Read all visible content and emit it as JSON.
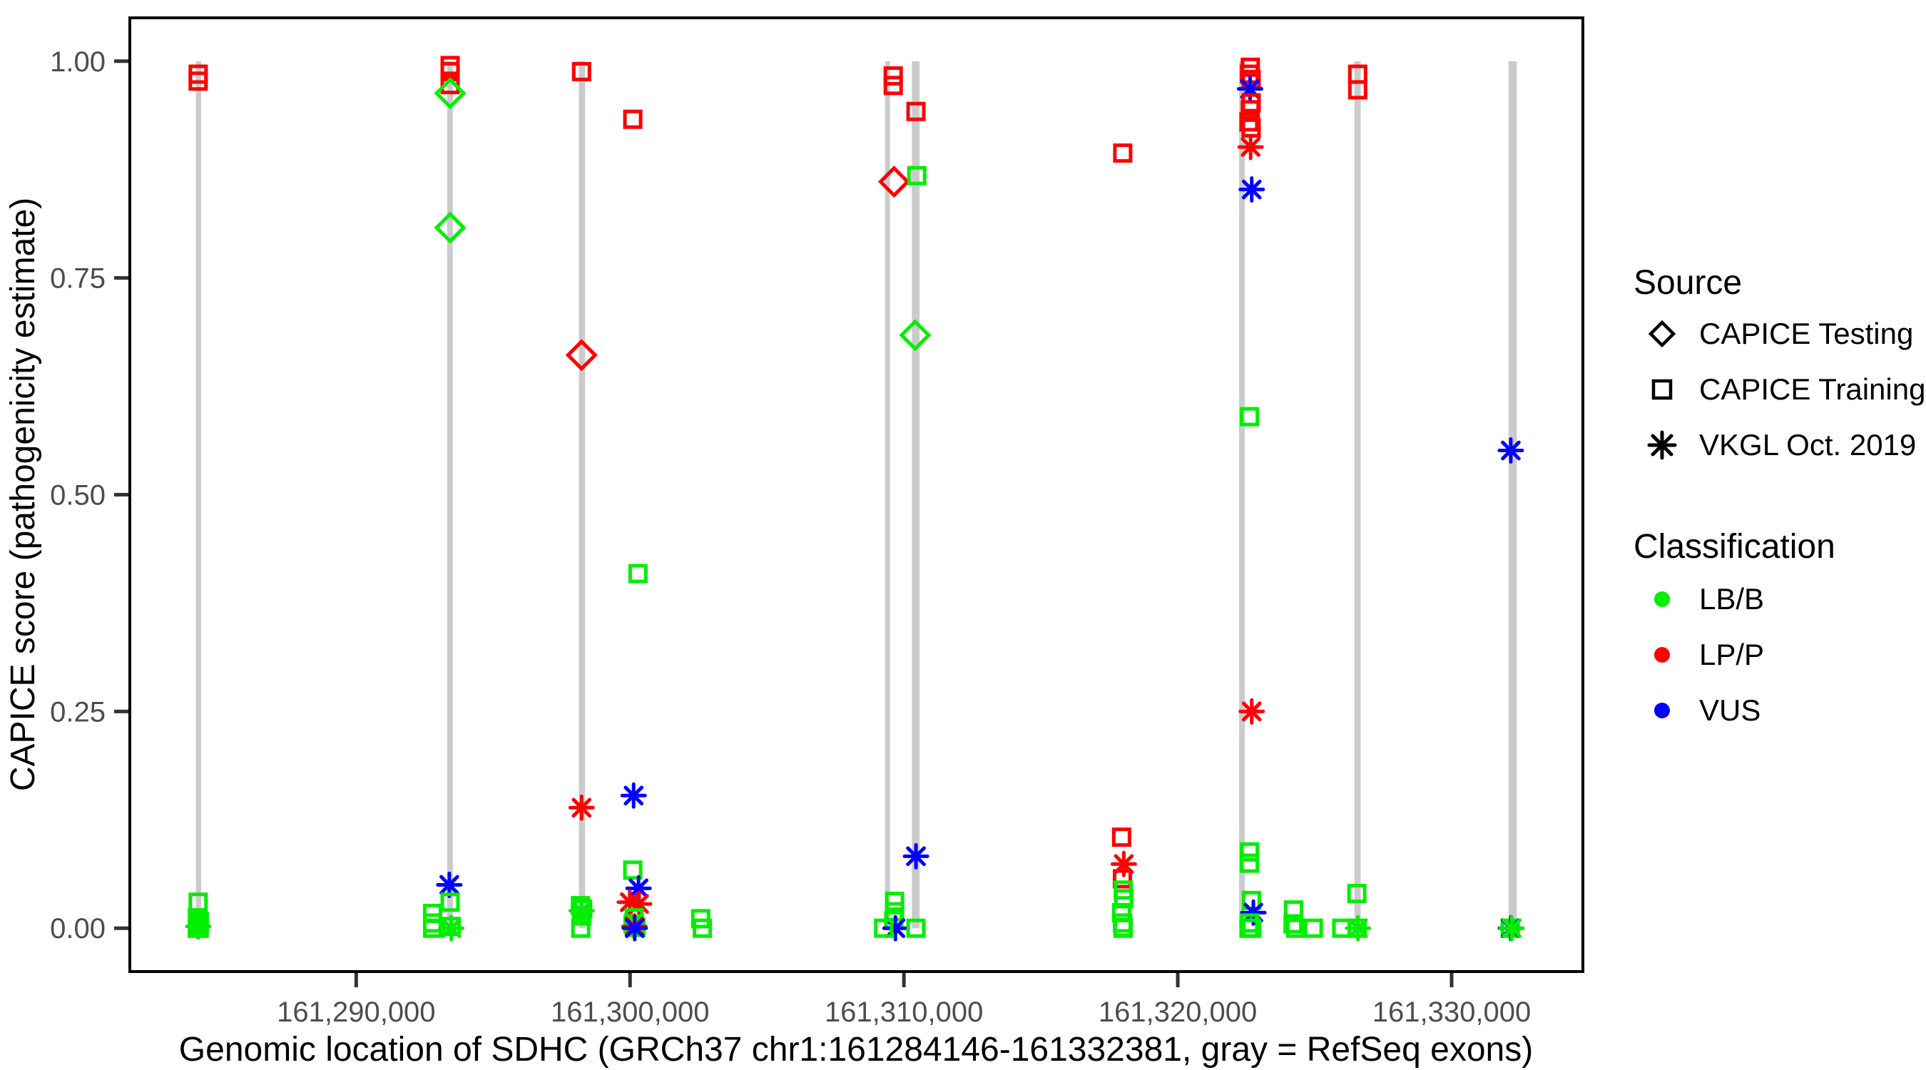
{
  "chart_data": {
    "type": "scatter",
    "title": "",
    "xlabel": "Genomic location of SDHC (GRCh37 chr1:161284146-161332381, gray = RefSeq exons)",
    "ylabel": "CAPICE score (pathogenicity estimate)",
    "xlim": [
      161281734,
      161334793
    ],
    "ylim": [
      -0.05,
      1.05
    ],
    "grid": "off",
    "x_ticks": [
      {
        "value": 161290000,
        "label": "161,290,000"
      },
      {
        "value": 161300000,
        "label": "161,300,000"
      },
      {
        "value": 161310000,
        "label": "161,310,000"
      },
      {
        "value": 161320000,
        "label": "161,320,000"
      },
      {
        "value": 161330000,
        "label": "161,330,000"
      }
    ],
    "y_ticks": [
      {
        "value": 0.0,
        "label": "0.00"
      },
      {
        "value": 0.25,
        "label": "0.25"
      },
      {
        "value": 0.5,
        "label": "0.50"
      },
      {
        "value": 0.75,
        "label": "0.75"
      },
      {
        "value": 1.0,
        "label": "1.00"
      }
    ],
    "exon_color": "#cbcbcb",
    "exons": [
      {
        "start": 161284146,
        "end": 161284340
      },
      {
        "start": 161293320,
        "end": 161293530
      },
      {
        "start": 161298130,
        "end": 161298360
      },
      {
        "start": 161309310,
        "end": 161309470
      },
      {
        "start": 161310290,
        "end": 161310570
      },
      {
        "start": 161322240,
        "end": 161322450
      },
      {
        "start": 161326450,
        "end": 161326680
      },
      {
        "start": 161332080,
        "end": 161332380
      }
    ],
    "legend": {
      "source_title": "Source",
      "sources": [
        {
          "id": "testing",
          "label": "CAPICE Testing",
          "marker": "diamond"
        },
        {
          "id": "training",
          "label": "CAPICE Training",
          "marker": "square"
        },
        {
          "id": "vkgl",
          "label": "VKGL Oct. 2019",
          "marker": "asterisk"
        }
      ],
      "classification_title": "Classification",
      "classes": [
        {
          "id": "LB/B",
          "label": "LB/B",
          "color": "#00ee00"
        },
        {
          "id": "LP/P",
          "label": "LP/P",
          "color": "#ff0000"
        },
        {
          "id": "VUS",
          "label": "VUS",
          "color": "#0000ff"
        }
      ],
      "position": "right"
    },
    "points": [
      {
        "pos": 161284230,
        "score": 0.985,
        "source": "training",
        "cls": "LP/P"
      },
      {
        "pos": 161284230,
        "score": 0.977,
        "source": "training",
        "cls": "LP/P"
      },
      {
        "pos": 161284230,
        "score": 0.03,
        "source": "training",
        "cls": "LB/B"
      },
      {
        "pos": 161284200,
        "score": 0.012,
        "source": "training",
        "cls": "LB/B"
      },
      {
        "pos": 161284270,
        "score": 0.008,
        "source": "training",
        "cls": "LB/B"
      },
      {
        "pos": 161284230,
        "score": 0.004,
        "source": "training",
        "cls": "LB/B"
      },
      {
        "pos": 161284230,
        "score": 0.002,
        "source": "vkgl",
        "cls": "LB/B"
      },
      {
        "pos": 161284200,
        "score": 0.0,
        "source": "training",
        "cls": "LB/B"
      },
      {
        "pos": 161284270,
        "score": 0.0,
        "source": "training",
        "cls": "LB/B"
      },
      {
        "pos": 161292790,
        "score": 0.017,
        "source": "training",
        "cls": "LB/B"
      },
      {
        "pos": 161292790,
        "score": 0.006,
        "source": "training",
        "cls": "LB/B"
      },
      {
        "pos": 161292790,
        "score": 0.0,
        "source": "training",
        "cls": "LB/B"
      },
      {
        "pos": 161293430,
        "score": 0.995,
        "source": "training",
        "cls": "LP/P"
      },
      {
        "pos": 161293430,
        "score": 0.988,
        "source": "training",
        "cls": "LP/P"
      },
      {
        "pos": 161293430,
        "score": 0.973,
        "source": "training",
        "cls": "LP/P"
      },
      {
        "pos": 161293430,
        "score": 0.963,
        "source": "testing",
        "cls": "LB/B"
      },
      {
        "pos": 161293430,
        "score": 0.808,
        "source": "testing",
        "cls": "LB/B"
      },
      {
        "pos": 161293400,
        "score": 0.05,
        "source": "vkgl",
        "cls": "VUS"
      },
      {
        "pos": 161293430,
        "score": 0.03,
        "source": "training",
        "cls": "LB/B"
      },
      {
        "pos": 161293470,
        "score": 0.002,
        "source": "training",
        "cls": "LB/B"
      },
      {
        "pos": 161293470,
        "score": 0.0,
        "source": "vkgl",
        "cls": "LB/B"
      },
      {
        "pos": 161298230,
        "score": 0.988,
        "source": "training",
        "cls": "LP/P"
      },
      {
        "pos": 161298230,
        "score": 0.661,
        "source": "testing",
        "cls": "LP/P"
      },
      {
        "pos": 161298230,
        "score": 0.139,
        "source": "vkgl",
        "cls": "LP/P"
      },
      {
        "pos": 161298190,
        "score": 0.026,
        "source": "training",
        "cls": "LB/B"
      },
      {
        "pos": 161298270,
        "score": 0.022,
        "source": "training",
        "cls": "LB/B"
      },
      {
        "pos": 161298230,
        "score": 0.02,
        "source": "vkgl",
        "cls": "LB/B"
      },
      {
        "pos": 161298230,
        "score": 0.014,
        "source": "training",
        "cls": "LB/B"
      },
      {
        "pos": 161298200,
        "score": 0.0,
        "source": "training",
        "cls": "LB/B"
      },
      {
        "pos": 161300100,
        "score": 0.933,
        "source": "training",
        "cls": "LP/P"
      },
      {
        "pos": 161300290,
        "score": 0.409,
        "source": "training",
        "cls": "LB/B"
      },
      {
        "pos": 161300130,
        "score": 0.153,
        "source": "vkgl",
        "cls": "VUS"
      },
      {
        "pos": 161300100,
        "score": 0.067,
        "source": "training",
        "cls": "LB/B"
      },
      {
        "pos": 161300310,
        "score": 0.046,
        "source": "vkgl",
        "cls": "VUS"
      },
      {
        "pos": 161299990,
        "score": 0.03,
        "source": "vkgl",
        "cls": "LP/P"
      },
      {
        "pos": 161300330,
        "score": 0.028,
        "source": "vkgl",
        "cls": "LP/P"
      },
      {
        "pos": 161300150,
        "score": 0.012,
        "source": "training",
        "cls": "LB/B"
      },
      {
        "pos": 161300110,
        "score": 0.005,
        "source": "training",
        "cls": "LB/B"
      },
      {
        "pos": 161300220,
        "score": 0.001,
        "source": "training",
        "cls": "LB/B"
      },
      {
        "pos": 161300160,
        "score": 0.002,
        "source": "vkgl",
        "cls": "LP/P"
      },
      {
        "pos": 161300170,
        "score": 0.0,
        "source": "vkgl",
        "cls": "VUS"
      },
      {
        "pos": 161302580,
        "score": 0.011,
        "source": "training",
        "cls": "LB/B"
      },
      {
        "pos": 161302640,
        "score": 0.0,
        "source": "training",
        "cls": "LB/B"
      },
      {
        "pos": 161309610,
        "score": 0.983,
        "source": "training",
        "cls": "LP/P"
      },
      {
        "pos": 161309610,
        "score": 0.972,
        "source": "training",
        "cls": "LP/P"
      },
      {
        "pos": 161309640,
        "score": 0.861,
        "source": "testing",
        "cls": "LP/P"
      },
      {
        "pos": 161309660,
        "score": 0.031,
        "source": "training",
        "cls": "LB/B"
      },
      {
        "pos": 161309660,
        "score": 0.019,
        "source": "training",
        "cls": "LB/B"
      },
      {
        "pos": 161309630,
        "score": 0.009,
        "source": "training",
        "cls": "LB/B"
      },
      {
        "pos": 161309690,
        "score": 0.0,
        "source": "vkgl",
        "cls": "VUS"
      },
      {
        "pos": 161309260,
        "score": 0.0,
        "source": "training",
        "cls": "LB/B"
      },
      {
        "pos": 161310440,
        "score": 0.942,
        "source": "training",
        "cls": "LP/P"
      },
      {
        "pos": 161310470,
        "score": 0.868,
        "source": "training",
        "cls": "LB/B"
      },
      {
        "pos": 161310410,
        "score": 0.684,
        "source": "testing",
        "cls": "LB/B"
      },
      {
        "pos": 161310440,
        "score": 0.083,
        "source": "vkgl",
        "cls": "VUS"
      },
      {
        "pos": 161310440,
        "score": 0.0,
        "source": "training",
        "cls": "LB/B"
      },
      {
        "pos": 161317990,
        "score": 0.894,
        "source": "training",
        "cls": "LP/P"
      },
      {
        "pos": 161317950,
        "score": 0.105,
        "source": "training",
        "cls": "LP/P"
      },
      {
        "pos": 161318030,
        "score": 0.074,
        "source": "vkgl",
        "cls": "LP/P"
      },
      {
        "pos": 161317980,
        "score": 0.057,
        "source": "training",
        "cls": "LP/P"
      },
      {
        "pos": 161318010,
        "score": 0.044,
        "source": "training",
        "cls": "LB/B"
      },
      {
        "pos": 161318030,
        "score": 0.034,
        "source": "training",
        "cls": "LB/B"
      },
      {
        "pos": 161317950,
        "score": 0.018,
        "source": "training",
        "cls": "LB/B"
      },
      {
        "pos": 161317980,
        "score": 0.006,
        "source": "training",
        "cls": "LB/B"
      },
      {
        "pos": 161318010,
        "score": 0.001,
        "source": "training",
        "cls": "LB/B"
      },
      {
        "pos": 161318000,
        "score": 0.0,
        "source": "training",
        "cls": "LB/B"
      },
      {
        "pos": 161322650,
        "score": 0.993,
        "source": "training",
        "cls": "LP/P"
      },
      {
        "pos": 161322620,
        "score": 0.985,
        "source": "training",
        "cls": "LP/P"
      },
      {
        "pos": 161322680,
        "score": 0.979,
        "source": "training",
        "cls": "LP/P"
      },
      {
        "pos": 161322640,
        "score": 0.968,
        "source": "vkgl",
        "cls": "VUS"
      },
      {
        "pos": 161322680,
        "score": 0.952,
        "source": "training",
        "cls": "LP/P"
      },
      {
        "pos": 161322650,
        "score": 0.944,
        "source": "training",
        "cls": "LP/P"
      },
      {
        "pos": 161322600,
        "score": 0.93,
        "source": "training",
        "cls": "LP/P"
      },
      {
        "pos": 161322680,
        "score": 0.923,
        "source": "training",
        "cls": "LP/P"
      },
      {
        "pos": 161322660,
        "score": 0.901,
        "source": "vkgl",
        "cls": "LP/P"
      },
      {
        "pos": 161322700,
        "score": 0.852,
        "source": "vkgl",
        "cls": "VUS"
      },
      {
        "pos": 161322620,
        "score": 0.59,
        "source": "training",
        "cls": "LB/B"
      },
      {
        "pos": 161322700,
        "score": 0.25,
        "source": "vkgl",
        "cls": "LP/P"
      },
      {
        "pos": 161322620,
        "score": 0.088,
        "source": "training",
        "cls": "LB/B"
      },
      {
        "pos": 161322620,
        "score": 0.075,
        "source": "training",
        "cls": "LB/B"
      },
      {
        "pos": 161322690,
        "score": 0.032,
        "source": "training",
        "cls": "LB/B"
      },
      {
        "pos": 161322760,
        "score": 0.018,
        "source": "vkgl",
        "cls": "VUS"
      },
      {
        "pos": 161322620,
        "score": 0.006,
        "source": "training",
        "cls": "LB/B"
      },
      {
        "pos": 161322600,
        "score": 0.0,
        "source": "training",
        "cls": "LB/B"
      },
      {
        "pos": 161322700,
        "score": 0.0,
        "source": "training",
        "cls": "LB/B"
      },
      {
        "pos": 161324230,
        "score": 0.021,
        "source": "training",
        "cls": "LB/B"
      },
      {
        "pos": 161324210,
        "score": 0.005,
        "source": "training",
        "cls": "LB/B"
      },
      {
        "pos": 161324310,
        "score": 0.0,
        "source": "training",
        "cls": "LB/B"
      },
      {
        "pos": 161324950,
        "score": 0.0,
        "source": "training",
        "cls": "LB/B"
      },
      {
        "pos": 161326570,
        "score": 0.985,
        "source": "training",
        "cls": "LP/P"
      },
      {
        "pos": 161326570,
        "score": 0.967,
        "source": "training",
        "cls": "LP/P"
      },
      {
        "pos": 161326540,
        "score": 0.04,
        "source": "training",
        "cls": "LB/B"
      },
      {
        "pos": 161325990,
        "score": 0.0,
        "source": "training",
        "cls": "LB/B"
      },
      {
        "pos": 161326550,
        "score": 0.0,
        "source": "training",
        "cls": "LB/B"
      },
      {
        "pos": 161326580,
        "score": 0.0,
        "source": "vkgl",
        "cls": "LB/B"
      },
      {
        "pos": 161332160,
        "score": 0.551,
        "source": "vkgl",
        "cls": "VUS"
      },
      {
        "pos": 161332140,
        "score": 0.0,
        "source": "training",
        "cls": "LB/B"
      },
      {
        "pos": 161332160,
        "score": 0.0,
        "source": "vkgl",
        "cls": "VUS"
      },
      {
        "pos": 161332190,
        "score": 0.0,
        "source": "vkgl",
        "cls": "LB/B"
      }
    ]
  }
}
